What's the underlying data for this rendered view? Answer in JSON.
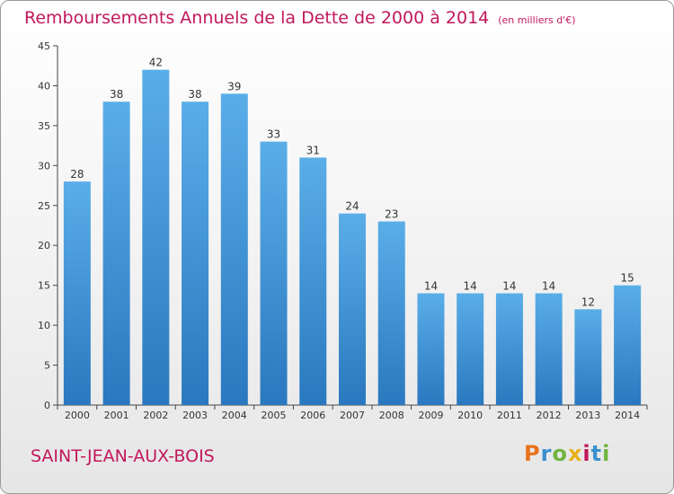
{
  "header": {
    "title": "Remboursements Annuels de la Dette de 2000 à 2014",
    "subtitle": "(en milliers d'€)"
  },
  "footer": {
    "commune": "SAINT-JEAN-AUX-BOIS",
    "logo": "Proxiti",
    "logo_colors": [
      "#e8731b",
      "#3a8fd0",
      "#6fb43f",
      "#e8b21b",
      "#c2185b",
      "#3a8fd0",
      "#6fb43f"
    ]
  },
  "colors": {
    "bar_top": "#5aaee8",
    "bar_bottom": "#2a78bf",
    "axis": "#444444",
    "grid_tick": "#888888",
    "title": "#c2185b"
  },
  "chart_data": {
    "type": "bar",
    "categories": [
      "2000",
      "2001",
      "2002",
      "2003",
      "2004",
      "2005",
      "2006",
      "2007",
      "2008",
      "2009",
      "2010",
      "2011",
      "2012",
      "2013",
      "2014"
    ],
    "values": [
      28,
      38,
      42,
      38,
      39,
      33,
      31,
      24,
      23,
      14,
      14,
      14,
      14,
      12,
      15
    ],
    "title": "Remboursements Annuels de la Dette de 2000 à 2014",
    "subtitle": "(en milliers d'€)",
    "xlabel": "",
    "ylabel": "",
    "ylim": [
      0,
      45
    ],
    "yticks": [
      0,
      5,
      10,
      15,
      20,
      25,
      30,
      35,
      40,
      45
    ],
    "grid": false,
    "legend": "none"
  }
}
